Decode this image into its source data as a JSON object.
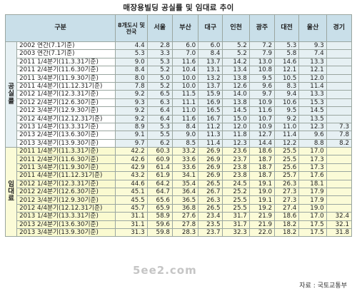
{
  "title": "매장용빌딩 공실률 및 임대료 추이",
  "columns": [
    "구분",
    "8개도시 및 전국",
    "서울",
    "부산",
    "대구",
    "인천",
    "광주",
    "대전",
    "울산",
    "경기"
  ],
  "groups": {
    "vacancy": "공실률",
    "rent": "임대료"
  },
  "vacancy_rows": [
    {
      "label": "2002 연간(7.1기준)",
      "values": [
        "4.4",
        "2.8",
        "6.0",
        "6.0",
        "5.2",
        "7.2",
        "5.3",
        "9.3",
        ""
      ]
    },
    {
      "label": "2003 연간(7.1기준)",
      "values": [
        "5.3",
        "3.3",
        "7.0",
        "8.4",
        "5.2",
        "7.9",
        "5.8",
        "7.4",
        ""
      ]
    },
    {
      "label": "2011 1/4분기(11.3.31기준)",
      "values": [
        "9.0",
        "5.3",
        "11.6",
        "13.7",
        "14.2",
        "13.0",
        "14.6",
        "13.3",
        ""
      ]
    },
    {
      "label": "2011 2/4분기(11.6.30기준)",
      "values": [
        "8.4",
        "5.2",
        "10.4",
        "13.1",
        "13.4",
        "10.8",
        "12.1",
        "12.1",
        ""
      ]
    },
    {
      "label": "2011 3/4분기(11.9.30기준)",
      "values": [
        "8.0",
        "5.0",
        "10.0",
        "13.2",
        "13.8",
        "9.5",
        "10.5",
        "12.0",
        ""
      ]
    },
    {
      "label": "2011 4/4분기(11.12.31기준)",
      "values": [
        "7.8",
        "5.2",
        "10.0",
        "13.7",
        "12.6",
        "9.6",
        "8.3",
        "11.4",
        ""
      ]
    },
    {
      "label": "2012 1/4분기(12.3.31기준)",
      "values": [
        "9.2",
        "6.5",
        "11.5",
        "15.9",
        "14.0",
        "9.7",
        "9.4",
        "13.3",
        ""
      ]
    },
    {
      "label": "2012 2/4분기(12.6.30기준)",
      "values": [
        "9.3",
        "6.3",
        "11.1",
        "16.9",
        "13.8",
        "10.9",
        "10.6",
        "15.3",
        ""
      ]
    },
    {
      "label": "2012 3/4분기(12.9.30기준)",
      "values": [
        "9.2",
        "6.4",
        "11.0",
        "16.5",
        "14.5",
        "11.6",
        "9.5",
        "14.5",
        ""
      ]
    },
    {
      "label": "2012 4/4분기(12.12.31기준)",
      "values": [
        "9.2",
        "6.4",
        "11.6",
        "16.7",
        "15.0",
        "10.7",
        "9.2",
        "13.5",
        ""
      ]
    },
    {
      "label": "2013 1/4분기(13.3.31기준)",
      "values": [
        "8.9",
        "5.3",
        "8.4",
        "11.2",
        "12.0",
        "10.9",
        "11.0",
        "12.3",
        "7.3"
      ]
    },
    {
      "label": "2013 2/4분기(13.6.30기준)",
      "values": [
        "9.1",
        "5.5",
        "9.0",
        "11.3",
        "11.8",
        "12.7",
        "11.4",
        "9.6",
        "7.8"
      ]
    },
    {
      "label": "2013 3/4분기(13.9.30기준)",
      "values": [
        "9.7",
        "6.2",
        "8.5",
        "11.4",
        "12.3",
        "14.4",
        "12.2",
        "8.8",
        "8.2"
      ]
    }
  ],
  "rent_rows": [
    {
      "label": "2011 1/4분기(11.3.31기준)",
      "values": [
        "42.2",
        "60.3",
        "33.2",
        "26.9",
        "23.6",
        "18.6",
        "25.5",
        "17.0",
        ""
      ]
    },
    {
      "label": "2011 2/4분기(11.6.30기준)",
      "values": [
        "42.6",
        "60.9",
        "33.6",
        "26.9",
        "23.7",
        "18.7",
        "25.5",
        "17.3",
        ""
      ]
    },
    {
      "label": "2011 3/4분기(11.9.30기준)",
      "values": [
        "42.9",
        "61.4",
        "33.6",
        "26.9",
        "23.8",
        "18.7",
        "25.6",
        "17.3",
        ""
      ]
    },
    {
      "label": "2011 4/4분기(11.12.31기준)",
      "values": [
        "43.2",
        "61.9",
        "34.1",
        "26.9",
        "23.8",
        "18.7",
        "25.7",
        "17.6",
        ""
      ]
    },
    {
      "label": "2012 1/4분기(12.3.31기준)",
      "values": [
        "44.6",
        "64.2",
        "35.4",
        "26.5",
        "24.5",
        "19.1",
        "26.3",
        "18.1",
        ""
      ]
    },
    {
      "label": "2012 2/4분기(12.6.30기준)",
      "values": [
        "45.1",
        "64.7",
        "36.4",
        "26.7",
        "25.2",
        "19.0",
        "27.3",
        "17.9",
        ""
      ]
    },
    {
      "label": "2012 3/4분기(12.9.30기준)",
      "values": [
        "45.5",
        "65.6",
        "36.5",
        "26.3",
        "25.5",
        "19.1",
        "27.3",
        "17.9",
        ""
      ]
    },
    {
      "label": "2012 4/4분기(12.12.31기준)",
      "values": [
        "45.7",
        "65.9",
        "36.8",
        "26.5",
        "25.5",
        "19.2",
        "27.4",
        "19.0",
        ""
      ]
    },
    {
      "label": "2013 1/4분기(13.3.31기준)",
      "values": [
        "31.1",
        "58.9",
        "27.6",
        "23.4",
        "31.7",
        "21.9",
        "18.6",
        "17.0",
        "32.4"
      ]
    },
    {
      "label": "2013 2/4분기(13.6.30기준)",
      "values": [
        "31.1",
        "59.6",
        "27.8",
        "23.5",
        "31.7",
        "21.9",
        "18.2",
        "17.5",
        "32.1"
      ]
    },
    {
      "label": "2013 3/4분기(13.9.30기준)",
      "values": [
        "31.3",
        "59.8",
        "28.3",
        "23.7",
        "32.3",
        "22.0",
        "18.2",
        "17.5",
        "31.8"
      ]
    }
  ],
  "source": "자료 : 국토교통부",
  "watermark": "5ee2.com"
}
